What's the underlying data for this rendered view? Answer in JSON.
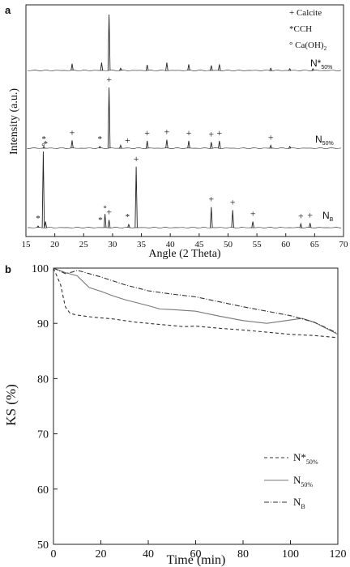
{
  "chart_data": [
    {
      "type": "line",
      "panel_label": "a",
      "xlabel": "Angle (2 Theta)",
      "ylabel": "Intensity (a.u.)",
      "xlim": [
        15,
        70
      ],
      "x_ticks": [
        15,
        20,
        25,
        30,
        35,
        40,
        45,
        50,
        55,
        60,
        65,
        70
      ],
      "legend": [
        {
          "symbol": "+",
          "label": "Calcite"
        },
        {
          "symbol": "*",
          "label": "CCH"
        },
        {
          "symbol": "°",
          "label": "Ca(OH)",
          "label_sub": "2"
        }
      ],
      "series": [
        {
          "name": "N*",
          "name_sub": "50%",
          "peaks": [
            {
              "x": 23.0,
              "h": 0.12
            },
            {
              "x": 28.1,
              "h": 0.14
            },
            {
              "x": 29.4,
              "h": 1.0
            },
            {
              "x": 31.4,
              "h": 0.04
            },
            {
              "x": 36.0,
              "h": 0.1
            },
            {
              "x": 39.4,
              "h": 0.14
            },
            {
              "x": 43.2,
              "h": 0.11
            },
            {
              "x": 47.1,
              "h": 0.09
            },
            {
              "x": 48.5,
              "h": 0.11
            },
            {
              "x": 57.4,
              "h": 0.04
            },
            {
              "x": 60.7,
              "h": 0.03
            },
            {
              "x": 64.7,
              "h": 0.03
            }
          ],
          "markers": []
        },
        {
          "name": "N",
          "name_sub": "50%",
          "peaks": [
            {
              "x": 18.1,
              "h": 0.03
            },
            {
              "x": 23.0,
              "h": 0.13
            },
            {
              "x": 27.8,
              "h": 0.03
            },
            {
              "x": 29.4,
              "h": 1.0
            },
            {
              "x": 31.4,
              "h": 0.05
            },
            {
              "x": 36.0,
              "h": 0.12
            },
            {
              "x": 39.4,
              "h": 0.14
            },
            {
              "x": 43.2,
              "h": 0.12
            },
            {
              "x": 47.1,
              "h": 0.1
            },
            {
              "x": 48.5,
              "h": 0.12
            },
            {
              "x": 57.4,
              "h": 0.05
            },
            {
              "x": 60.7,
              "h": 0.03
            }
          ],
          "markers": [
            {
              "x": 18.1,
              "sym": "*"
            },
            {
              "x": 23.0,
              "sym": "+"
            },
            {
              "x": 27.8,
              "sym": "*"
            },
            {
              "x": 29.4,
              "sym": "+"
            },
            {
              "x": 32.6,
              "sym": "+"
            },
            {
              "x": 36.0,
              "sym": "+"
            },
            {
              "x": 39.4,
              "sym": "+"
            },
            {
              "x": 43.2,
              "sym": "+"
            },
            {
              "x": 47.1,
              "sym": "+"
            },
            {
              "x": 48.5,
              "sym": "+"
            },
            {
              "x": 57.4,
              "sym": "+"
            }
          ]
        },
        {
          "name": "N",
          "name_sub": "B",
          "peaks": [
            {
              "x": 17.1,
              "h": 0.02
            },
            {
              "x": 18.0,
              "h": 1.0
            },
            {
              "x": 18.4,
              "h": 0.08
            },
            {
              "x": 28.7,
              "h": 0.18
            },
            {
              "x": 29.4,
              "h": 0.1
            },
            {
              "x": 32.8,
              "h": 0.04
            },
            {
              "x": 34.1,
              "h": 0.8
            },
            {
              "x": 47.1,
              "h": 0.27
            },
            {
              "x": 50.8,
              "h": 0.23
            },
            {
              "x": 54.3,
              "h": 0.08
            },
            {
              "x": 62.6,
              "h": 0.05
            },
            {
              "x": 64.2,
              "h": 0.06
            }
          ],
          "markers": [
            {
              "x": 17.1,
              "sym": "*"
            },
            {
              "x": 18.0,
              "sym": "°"
            },
            {
              "x": 18.4,
              "sym": "*"
            },
            {
              "x": 27.9,
              "sym": "*"
            },
            {
              "x": 28.7,
              "sym": "°"
            },
            {
              "x": 29.4,
              "sym": "+"
            },
            {
              "x": 32.6,
              "sym": "*"
            },
            {
              "x": 34.1,
              "sym": "+"
            },
            {
              "x": 47.1,
              "sym": "+"
            },
            {
              "x": 50.8,
              "sym": "+"
            },
            {
              "x": 54.3,
              "sym": "+"
            },
            {
              "x": 62.6,
              "sym": "+"
            },
            {
              "x": 64.2,
              "sym": "+"
            }
          ]
        }
      ]
    },
    {
      "type": "line",
      "panel_label": "b",
      "xlabel": "Time (min)",
      "ylabel": "KS (%)",
      "xlim": [
        0,
        120
      ],
      "ylim": [
        50,
        100
      ],
      "x_ticks": [
        0,
        20,
        40,
        60,
        80,
        100,
        120
      ],
      "y_ticks": [
        50,
        60,
        70,
        80,
        90,
        100
      ],
      "legend_position": "lower-right",
      "series": [
        {
          "name": "N*",
          "name_sub": "50%",
          "style": "dashed",
          "x": [
            0,
            3,
            5,
            7,
            10,
            15,
            20,
            25,
            30,
            35,
            40,
            45,
            50,
            55,
            60,
            70,
            80,
            90,
            100,
            110,
            120
          ],
          "y": [
            100,
            97,
            93,
            91.8,
            91.5,
            91.2,
            91.0,
            90.8,
            90.5,
            90.2,
            90.0,
            89.8,
            89.6,
            89.4,
            89.5,
            89.1,
            88.8,
            88.4,
            88.0,
            87.8,
            87.4
          ]
        },
        {
          "name": "N",
          "name_sub": "50%",
          "style": "solid",
          "x": [
            0,
            5,
            10,
            15,
            20,
            25,
            30,
            40,
            45,
            50,
            60,
            70,
            80,
            90,
            100,
            105,
            110,
            120
          ],
          "y": [
            100,
            99.2,
            98.6,
            96.5,
            95.8,
            95.0,
            94.3,
            93.2,
            92.6,
            92.5,
            92.2,
            91.3,
            90.5,
            90.0,
            90.6,
            90.9,
            90.2,
            88.0
          ]
        },
        {
          "name": "N",
          "name_sub": "B",
          "style": "dash-dot",
          "x": [
            0,
            5,
            8,
            10,
            15,
            20,
            30,
            40,
            50,
            60,
            70,
            80,
            90,
            100,
            110,
            120
          ],
          "y": [
            100,
            99.0,
            99.3,
            99.6,
            99.0,
            98.4,
            97.0,
            95.9,
            95.3,
            94.8,
            93.9,
            93.0,
            92.2,
            91.4,
            90.2,
            88.2
          ]
        }
      ]
    }
  ]
}
